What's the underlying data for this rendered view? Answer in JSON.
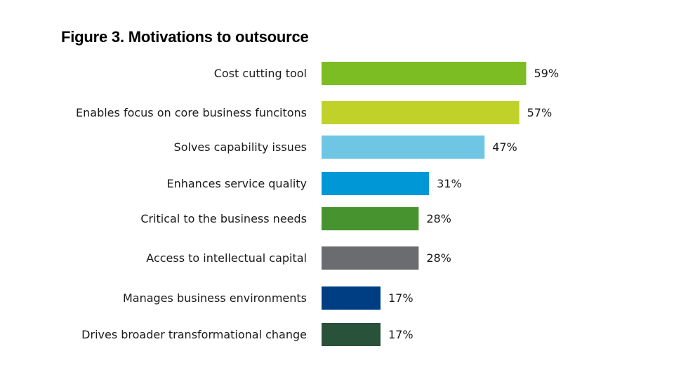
{
  "chart_data": {
    "type": "bar",
    "orientation": "horizontal",
    "title": "Figure 3. Motivations to outsource",
    "xlabel": "",
    "ylabel": "",
    "xlim": [
      0,
      100
    ],
    "grid": false,
    "legend": "none",
    "categories": [
      "Cost cutting tool",
      "Enables focus on core business funcitons",
      "Solves capability issues",
      "Enhances service quality",
      "Critical to the business needs",
      "Access to intellectual capital",
      "Manages business environments",
      "Drives broader transformational change"
    ],
    "values": [
      59,
      57,
      47,
      31,
      28,
      28,
      17,
      17
    ],
    "value_labels": [
      "59%",
      "57%",
      "47%",
      "31%",
      "28%",
      "28%",
      "17%",
      "17%"
    ],
    "colors": [
      "#7cbd23",
      "#c0d22a",
      "#6ec6e4",
      "#0097d7",
      "#46932f",
      "#6a6c70",
      "#003e84",
      "#29523a"
    ]
  }
}
